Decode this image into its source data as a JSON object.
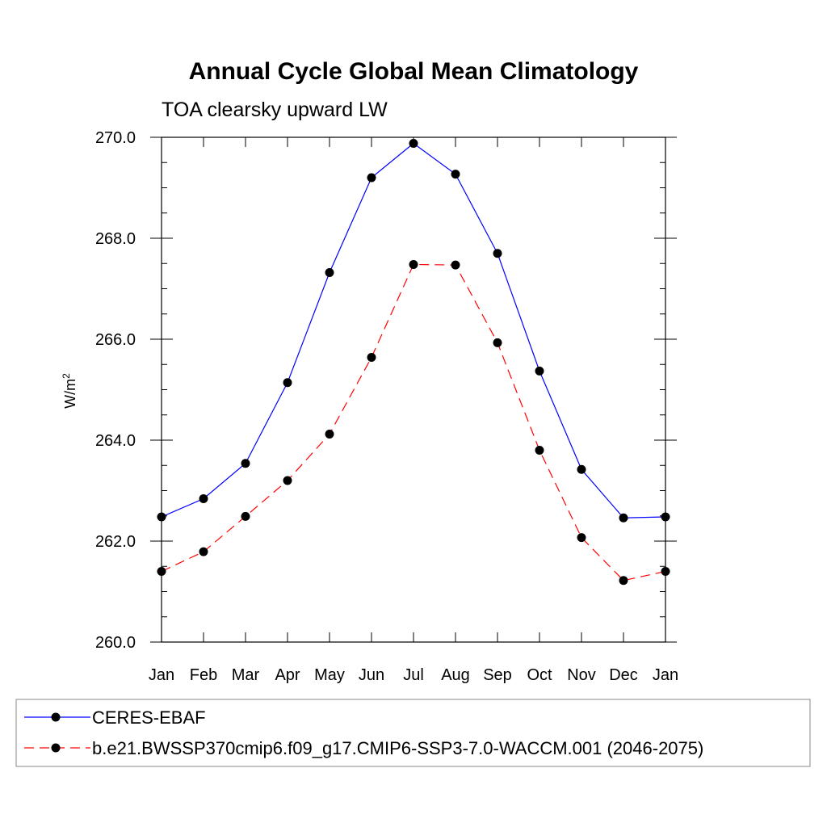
{
  "chart_data": {
    "type": "line",
    "title": "Annual Cycle Global Mean Climatology",
    "subtitle": "TOA clearsky upward LW",
    "ylabel_base": "W/m",
    "ylabel_sup": "2",
    "xlabel": "",
    "categories": [
      "Jan",
      "Feb",
      "Mar",
      "Apr",
      "May",
      "Jun",
      "Jul",
      "Aug",
      "Sep",
      "Oct",
      "Nov",
      "Dec",
      "Jan"
    ],
    "ylim": [
      260.0,
      270.0
    ],
    "yticks": [
      "260.0",
      "262.0",
      "264.0",
      "266.0",
      "268.0",
      "270.0"
    ],
    "grid": false,
    "legend_position": "bottom",
    "series": [
      {
        "name": "CERES-EBAF",
        "color": "#0000ff",
        "line_style": "solid",
        "marker": "filled-circle",
        "values": [
          262.48,
          262.84,
          263.54,
          265.14,
          267.32,
          269.2,
          269.88,
          269.27,
          267.7,
          265.37,
          263.42,
          262.46,
          262.48
        ]
      },
      {
        "name": "b.e21.BWSSP370cmip6.f09_g17.CMIP6-SSP3-7.0-WACCM.001 (2046-2075)",
        "color": "#ff0000",
        "line_style": "dashed",
        "marker": "filled-circle",
        "values": [
          261.4,
          261.79,
          262.49,
          263.2,
          264.12,
          265.64,
          267.48,
          267.47,
          265.93,
          263.8,
          262.07,
          261.22,
          261.4
        ]
      }
    ]
  }
}
